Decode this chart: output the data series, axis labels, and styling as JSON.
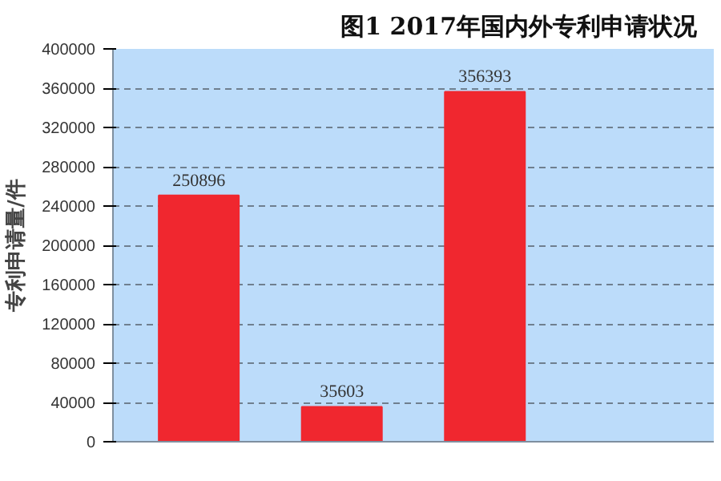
{
  "chart_data": {
    "type": "bar",
    "title": "图1   2017年国内外专利申请状况",
    "ylabel": "专利申请量/件",
    "categories": [
      null,
      null
    ],
    "series": [
      {
        "color": "#f0272f",
        "values": [
          250896,
          356393
        ]
      },
      {
        "color": "#f0272f",
        "values": [
          35603,
          null
        ]
      }
    ],
    "ylim": [
      0,
      400000
    ],
    "yticks": [
      0,
      40000,
      80000,
      120000,
      160000,
      200000,
      240000,
      280000,
      320000,
      360000,
      400000
    ],
    "grid": "y",
    "data_labels": true
  }
}
